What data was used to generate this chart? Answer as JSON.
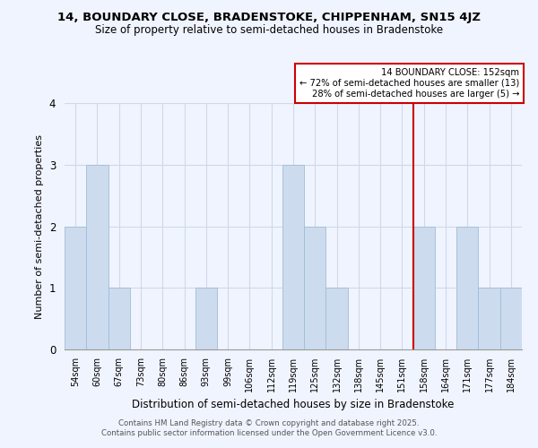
{
  "title": "14, BOUNDARY CLOSE, BRADENSTOKE, CHIPPENHAM, SN15 4JZ",
  "subtitle": "Size of property relative to semi-detached houses in Bradenstoke",
  "xlabel": "Distribution of semi-detached houses by size in Bradenstoke",
  "ylabel": "Number of semi-detached properties",
  "categories": [
    "54sqm",
    "60sqm",
    "67sqm",
    "73sqm",
    "80sqm",
    "86sqm",
    "93sqm",
    "99sqm",
    "106sqm",
    "112sqm",
    "119sqm",
    "125sqm",
    "132sqm",
    "138sqm",
    "145sqm",
    "151sqm",
    "158sqm",
    "164sqm",
    "171sqm",
    "177sqm",
    "184sqm"
  ],
  "values": [
    2,
    3,
    1,
    0,
    0,
    0,
    1,
    0,
    0,
    0,
    3,
    2,
    1,
    0,
    0,
    0,
    2,
    0,
    2,
    1,
    1
  ],
  "bar_color": "#ccdcee",
  "bar_edge_color": "#a0bcd8",
  "vline_index": 15,
  "annotation_line1": "14 BOUNDARY CLOSE: 152sqm",
  "annotation_line2": "← 72% of semi-detached houses are smaller (13)",
  "annotation_line3": "28% of semi-detached houses are larger (5) →",
  "vline_color": "#cc0000",
  "annotation_box_edge": "#cc0000",
  "ylim": [
    0,
    4
  ],
  "yticks": [
    0,
    1,
    2,
    3,
    4
  ],
  "background_color": "#f0f4ff",
  "grid_color": "#d0d8e8",
  "footer_line1": "Contains HM Land Registry data © Crown copyright and database right 2025.",
  "footer_line2": "Contains public sector information licensed under the Open Government Licence v3.0."
}
